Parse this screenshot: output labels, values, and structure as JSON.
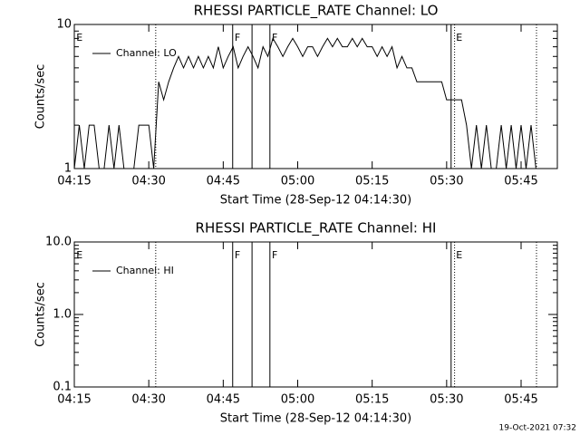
{
  "chart_data": [
    {
      "type": "line",
      "title": "RHESSI PARTICLE_RATE Channel: LO",
      "x_label": "Start Time (28-Sep-12 04:14:30)",
      "y_label": "Counts/sec",
      "log_y": true,
      "xlim": [
        15,
        112.3
      ],
      "xticks": [
        {
          "value": 15,
          "label": "04:15"
        },
        {
          "value": 30,
          "label": "04:30"
        },
        {
          "value": 45,
          "label": "04:45"
        },
        {
          "value": 60,
          "label": "05:00"
        },
        {
          "value": 75,
          "label": "05:15"
        },
        {
          "value": 90,
          "label": "05:30"
        },
        {
          "value": 105,
          "label": "05:45"
        }
      ],
      "ylim": [
        1,
        10
      ],
      "yticks": [
        1,
        10
      ],
      "lines": [
        {
          "x": 31.4,
          "style": "dotted"
        },
        {
          "x": 46.9,
          "style": "solid"
        },
        {
          "x": 50.8,
          "style": "solid"
        },
        {
          "x": 54.4,
          "style": "solid"
        },
        {
          "x": 90.9,
          "style": "solid"
        },
        {
          "x": 91.6,
          "style": "dotted"
        },
        {
          "x": 108.1,
          "style": "dotted"
        }
      ],
      "labels": [
        {
          "x": 15.4,
          "text": "E"
        },
        {
          "x": 47.3,
          "text": "F"
        },
        {
          "x": 54.8,
          "text": "F"
        },
        {
          "x": 91.9,
          "text": "E"
        }
      ],
      "x": [
        15,
        16,
        17,
        18,
        19,
        20,
        21,
        22,
        23,
        24,
        25,
        26,
        27,
        28,
        29,
        30,
        31,
        32,
        33,
        34,
        35,
        36,
        37,
        38,
        39,
        40,
        41,
        42,
        43,
        44,
        45,
        46,
        47,
        48,
        49,
        50,
        51,
        52,
        53,
        54,
        55,
        56,
        57,
        58,
        59,
        60,
        61,
        62,
        63,
        64,
        65,
        66,
        67,
        68,
        69,
        70,
        71,
        72,
        73,
        74,
        75,
        76,
        77,
        78,
        79,
        80,
        81,
        82,
        83,
        84,
        85,
        86,
        87,
        88,
        89,
        90,
        91,
        92,
        93,
        94,
        95,
        96,
        97,
        98,
        99,
        100,
        101,
        102,
        103,
        104,
        105,
        106,
        107,
        108
      ],
      "series": [
        {
          "name": "Channel: LO",
          "color": "#000000",
          "values": [
            1,
            2,
            1,
            2,
            2,
            1,
            1,
            2,
            1,
            2,
            1,
            1,
            1,
            2,
            2,
            2,
            1,
            4,
            3,
            4,
            5,
            6,
            5,
            6,
            5,
            6,
            5,
            6,
            5,
            7,
            5,
            6,
            7,
            5,
            6,
            7,
            6,
            5,
            7,
            6,
            8,
            7,
            6,
            7,
            8,
            7,
            6,
            7,
            7,
            6,
            7,
            8,
            7,
            8,
            7,
            7,
            8,
            7,
            8,
            7,
            7,
            6,
            7,
            6,
            7,
            5,
            6,
            5,
            5,
            4,
            4,
            4,
            4,
            4,
            4,
            3,
            3,
            3,
            3,
            2,
            1,
            2,
            1,
            2,
            1,
            1,
            2,
            1,
            2,
            1,
            2,
            1,
            2,
            1
          ]
        }
      ]
    },
    {
      "type": "line",
      "title": "RHESSI PARTICLE_RATE Channel: HI",
      "x_label": "Start Time (28-Sep-12 04:14:30)",
      "y_label": "Counts/sec",
      "log_y": true,
      "xlim": [
        15,
        112.3
      ],
      "xticks": [
        {
          "value": 15,
          "label": "04:15"
        },
        {
          "value": 30,
          "label": "04:30"
        },
        {
          "value": 45,
          "label": "04:45"
        },
        {
          "value": 60,
          "label": "05:00"
        },
        {
          "value": 75,
          "label": "05:15"
        },
        {
          "value": 90,
          "label": "05:30"
        },
        {
          "value": 105,
          "label": "05:45"
        }
      ],
      "ylim": [
        0.1,
        10
      ],
      "yticks": [
        0.1,
        {
          "value": 1,
          "label": "1.0"
        },
        {
          "value": 10,
          "label": "10.0"
        }
      ],
      "lines": [
        {
          "x": 31.4,
          "style": "dotted"
        },
        {
          "x": 46.9,
          "style": "solid"
        },
        {
          "x": 50.8,
          "style": "solid"
        },
        {
          "x": 54.4,
          "style": "solid"
        },
        {
          "x": 90.9,
          "style": "solid"
        },
        {
          "x": 91.6,
          "style": "dotted"
        },
        {
          "x": 108.1,
          "style": "dotted"
        }
      ],
      "labels": [
        {
          "x": 15.4,
          "text": "E"
        },
        {
          "x": 47.3,
          "text": "F"
        },
        {
          "x": 54.8,
          "text": "F"
        },
        {
          "x": 91.9,
          "text": "E"
        }
      ],
      "x": [],
      "series": [
        {
          "name": "Channel: HI",
          "color": "#000000",
          "values": []
        }
      ]
    }
  ],
  "footer": "19-Oct-2021 07:32"
}
